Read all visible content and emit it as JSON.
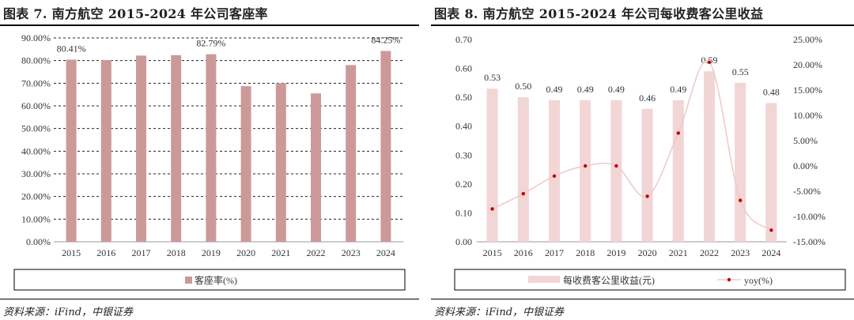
{
  "left": {
    "title": "图表 7. 南方航空 2015-2024 年公司客座率",
    "source": "资料来源：iFind，中银证券",
    "chart_data": {
      "type": "bar",
      "categories": [
        "2015",
        "2016",
        "2017",
        "2018",
        "2019",
        "2020",
        "2021",
        "2022",
        "2023",
        "2024"
      ],
      "series": [
        {
          "name": "客座率(%)",
          "values": [
            80.41,
            80.2,
            82.2,
            82.4,
            82.79,
            68.7,
            70.0,
            65.5,
            78.0,
            84.25
          ],
          "color": "#cc9999"
        }
      ],
      "ylim": [
        0,
        90
      ],
      "yticks": [
        "0.00%",
        "10.00%",
        "20.00%",
        "30.00%",
        "40.00%",
        "50.00%",
        "60.00%",
        "70.00%",
        "80.00%",
        "90.00%"
      ],
      "data_labels": [
        {
          "index": 0,
          "text": "80.41%"
        },
        {
          "index": 4,
          "text": "82.79%"
        },
        {
          "index": 9,
          "text": "84.25%"
        }
      ],
      "grid": true,
      "legend": "bottom"
    }
  },
  "right": {
    "title": "图表 8. 南方航空 2015-2024 年公司每收费客公里收益",
    "source": "资料来源：iFind，中银证券",
    "chart_data": {
      "type": "bar",
      "categories": [
        "2015",
        "2016",
        "2017",
        "2018",
        "2019",
        "2020",
        "2021",
        "2022",
        "2023",
        "2024"
      ],
      "series": [
        {
          "name": "每收费客公里收益(元)",
          "type": "bar",
          "axis": "left",
          "values": [
            0.53,
            0.5,
            0.49,
            0.49,
            0.49,
            0.46,
            0.49,
            0.59,
            0.55,
            0.48
          ],
          "labels": [
            "0.53",
            "0.50",
            "0.49",
            "0.49",
            "0.49",
            "0.46",
            "0.49",
            "0.59",
            "0.55",
            "0.48"
          ],
          "color": "#f2d5d5"
        },
        {
          "name": "yoy(%)",
          "type": "line",
          "axis": "right",
          "values": [
            -8.5,
            -5.5,
            -2.0,
            0.0,
            0.0,
            -6.0,
            6.5,
            20.5,
            -6.8,
            -12.7
          ],
          "color": "#c00000"
        }
      ],
      "ylim_left": [
        0,
        0.7
      ],
      "yticks_left": [
        "0.00",
        "0.10",
        "0.20",
        "0.30",
        "0.40",
        "0.50",
        "0.60",
        "0.70"
      ],
      "ylim_right": [
        -15,
        25
      ],
      "yticks_right": [
        "-15.00%",
        "-10.00%",
        "-5.00%",
        "0.00%",
        "5.00%",
        "10.00%",
        "15.00%",
        "20.00%",
        "25.00%"
      ],
      "grid": false,
      "legend": "bottom"
    }
  }
}
